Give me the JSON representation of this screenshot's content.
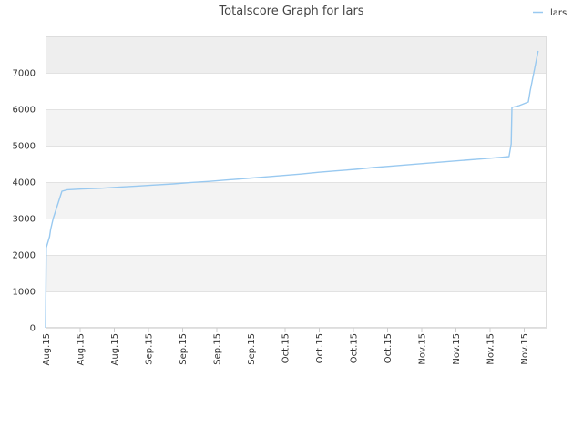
{
  "chart_data": {
    "type": "line",
    "title": "Totalscore Graph for lars",
    "xlabel": "",
    "ylabel": "",
    "ylim": [
      0,
      8000
    ],
    "y_ticks": [
      0,
      1000,
      2000,
      3000,
      4000,
      5000,
      6000,
      7000
    ],
    "x_tick_labels": [
      "Aug.15",
      "Aug.15",
      "Aug.15",
      "Sep.15",
      "Sep.15",
      "Sep.15",
      "Sep.15",
      "Oct.15",
      "Oct.15",
      "Oct.15",
      "Oct.15",
      "Nov.15",
      "Nov.15",
      "Nov.15",
      "Nov.15"
    ],
    "grid": true,
    "legend_position": "top-right",
    "series": [
      {
        "name": "lars",
        "color": "#99c9f0",
        "x": [
          0,
          0.2,
          1.1,
          1.4,
          2.1,
          4.5,
          6,
          10,
          15,
          20,
          25,
          30,
          35,
          40,
          45,
          50,
          55,
          60,
          65,
          70,
          75,
          80,
          85,
          90,
          95,
          100,
          105,
          110,
          115,
          120,
          125,
          127.2,
          127.8,
          128,
          130,
          132.5,
          133,
          135.2
        ],
        "values": [
          0,
          2200,
          2500,
          2700,
          3000,
          3750,
          3790,
          3810,
          3830,
          3860,
          3890,
          3920,
          3950,
          3990,
          4020,
          4060,
          4100,
          4140,
          4180,
          4220,
          4270,
          4310,
          4350,
          4400,
          4440,
          4480,
          4520,
          4560,
          4600,
          4640,
          4680,
          4700,
          5050,
          6050,
          6100,
          6200,
          6500,
          7600
        ]
      }
    ]
  }
}
